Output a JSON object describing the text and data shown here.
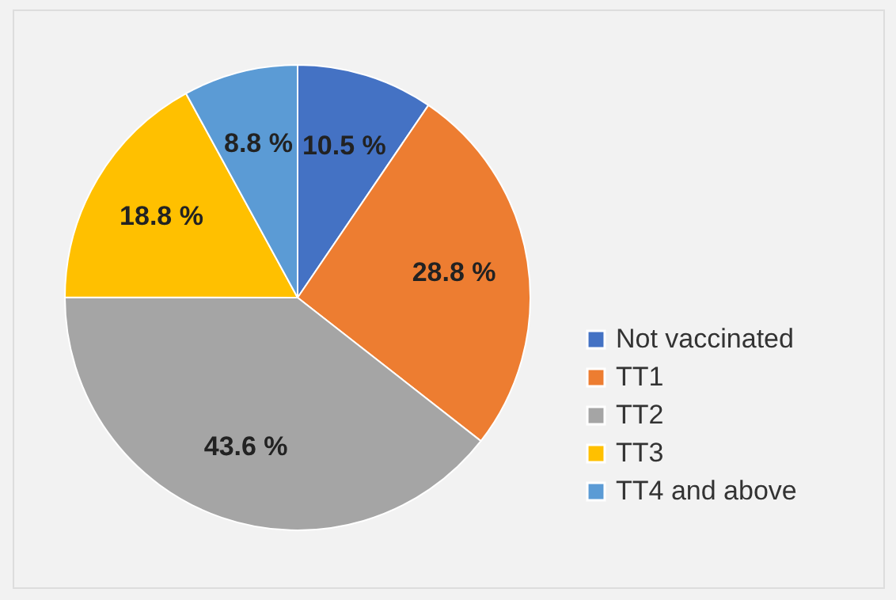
{
  "chart_data": {
    "type": "pie",
    "categories": [
      "Not vaccinated",
      "TT1",
      "TT2",
      "TT3",
      "TT4 and above"
    ],
    "values": [
      10.5,
      28.8,
      43.6,
      18.8,
      8.8
    ],
    "colors": [
      "#4472c4",
      "#ed7d31",
      "#a5a5a5",
      "#ffc000",
      "#5b9bd5"
    ],
    "value_labels": [
      "10.5 %",
      "28.8 %",
      "43.6  %",
      "18.8 %",
      "8.8  %"
    ],
    "legend": "bottom right"
  }
}
